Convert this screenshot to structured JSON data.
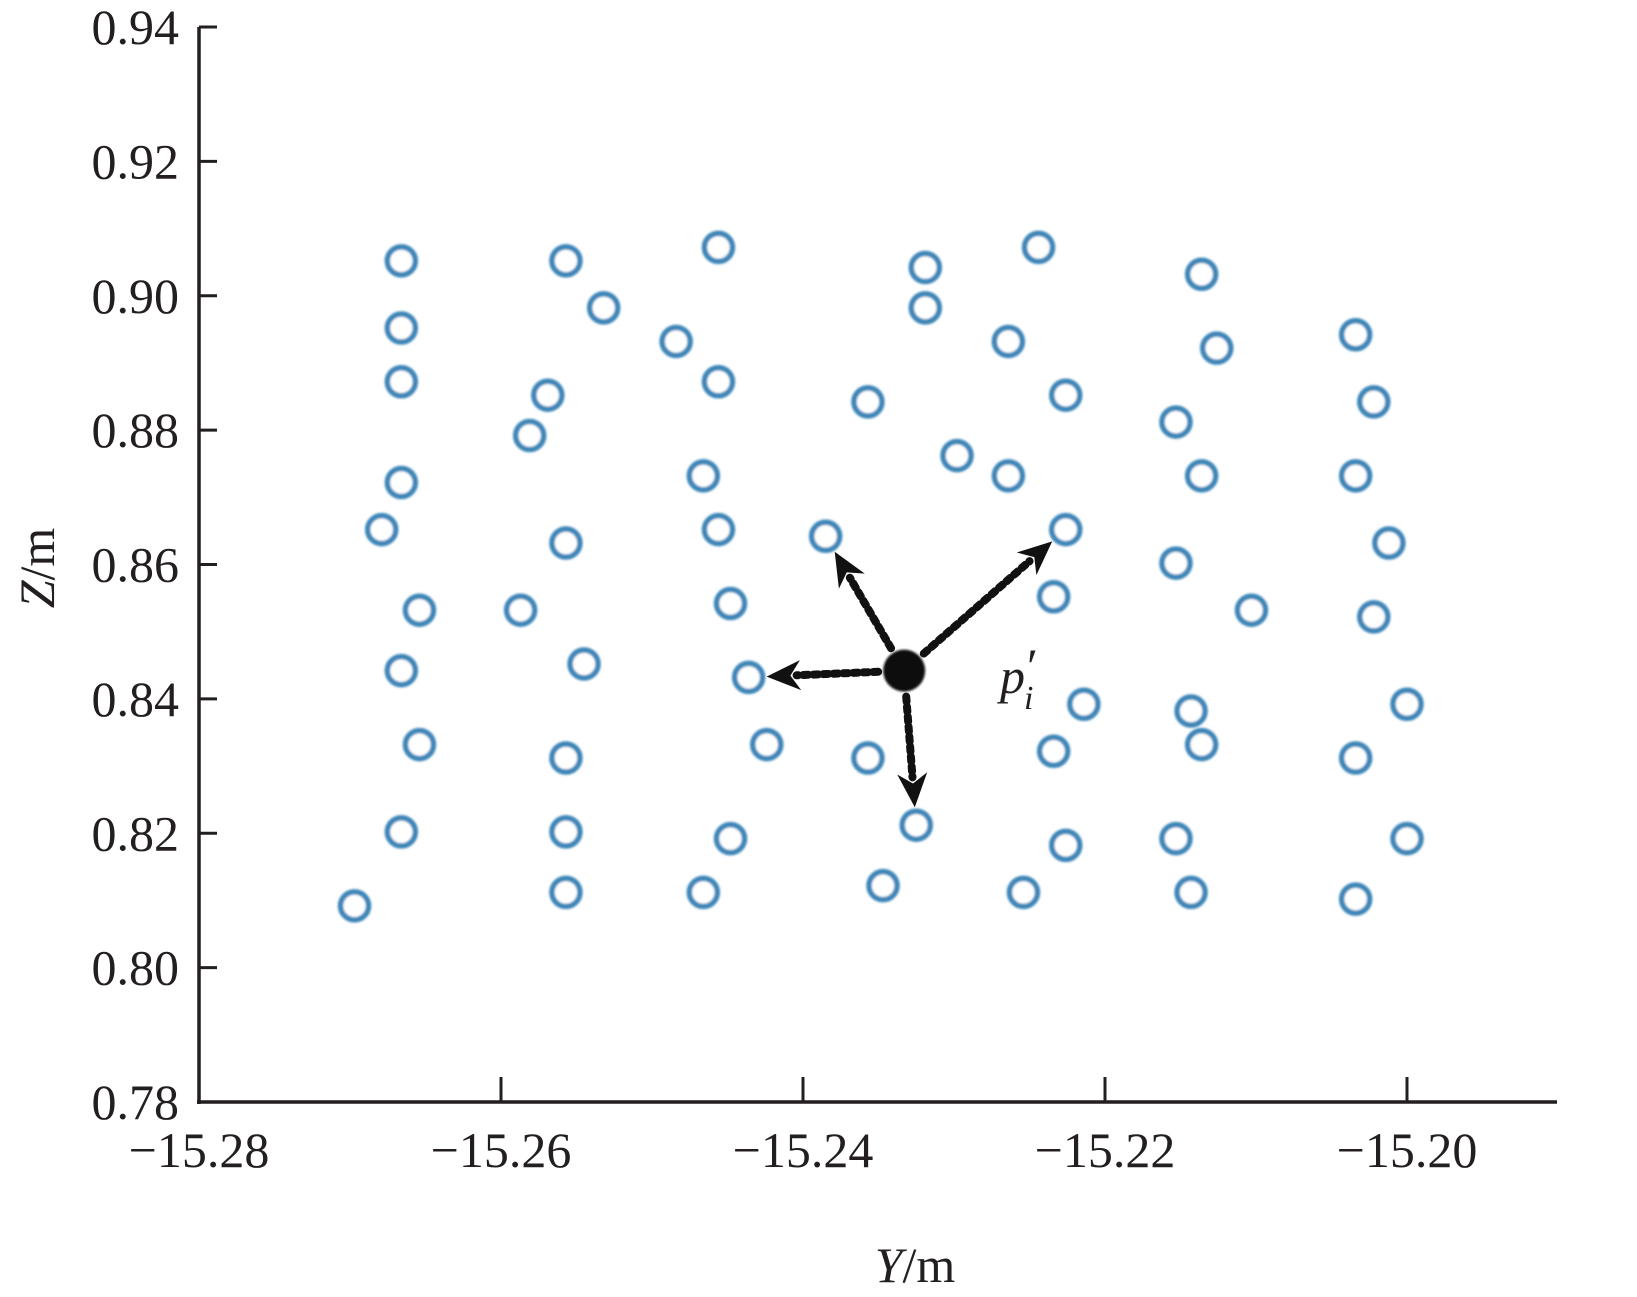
{
  "chart_data": {
    "type": "scatter",
    "title": "",
    "xlabel": "Y/m",
    "xlabel_var": "Y",
    "xlabel_unit": "/m",
    "ylabel": "Z/m",
    "ylabel_var": "Z",
    "ylabel_unit": "/m",
    "xlim": [
      -15.28,
      -15.19
    ],
    "ylim": [
      0.78,
      0.94
    ],
    "xticks": [
      -15.28,
      -15.26,
      -15.24,
      -15.22,
      -15.2
    ],
    "xtick_labels": [
      "−15.28",
      "−15.26",
      "−15.24",
      "−15.22",
      "−15.20"
    ],
    "yticks": [
      0.78,
      0.8,
      0.82,
      0.84,
      0.86,
      0.88,
      0.9,
      0.92,
      0.94
    ],
    "ytick_labels": [
      "0.78",
      "0.80",
      "0.82",
      "0.84",
      "0.86",
      "0.88",
      "0.90",
      "0.92",
      "0.94"
    ],
    "grid": false,
    "marker_color": "#3e86b8",
    "center_color": "#111111",
    "series": [
      {
        "marker": "hollow-circle",
        "points": [
          [
            -15.2666,
            0.9052
          ],
          [
            -15.2666,
            0.8952
          ],
          [
            -15.2666,
            0.8872
          ],
          [
            -15.2666,
            0.8722
          ],
          [
            -15.2679,
            0.8652
          ],
          [
            -15.2654,
            0.8532
          ],
          [
            -15.2666,
            0.8442
          ],
          [
            -15.2654,
            0.8332
          ],
          [
            -15.2666,
            0.8202
          ],
          [
            -15.2697,
            0.8092
          ],
          [
            -15.2557,
            0.9052
          ],
          [
            -15.2532,
            0.8982
          ],
          [
            -15.2569,
            0.8852
          ],
          [
            -15.2581,
            0.8792
          ],
          [
            -15.2557,
            0.8632
          ],
          [
            -15.2587,
            0.8532
          ],
          [
            -15.2545,
            0.8452
          ],
          [
            -15.2557,
            0.8312
          ],
          [
            -15.2557,
            0.8202
          ],
          [
            -15.2557,
            0.8112
          ],
          [
            -15.2456,
            0.9072
          ],
          [
            -15.2484,
            0.8932
          ],
          [
            -15.2456,
            0.8872
          ],
          [
            -15.2466,
            0.8732
          ],
          [
            -15.2456,
            0.8652
          ],
          [
            -15.2448,
            0.8542
          ],
          [
            -15.2436,
            0.8432
          ],
          [
            -15.2424,
            0.8332
          ],
          [
            -15.2448,
            0.8192
          ],
          [
            -15.2466,
            0.8112
          ],
          [
            -15.2385,
            0.8642
          ],
          [
            -15.2357,
            0.8842
          ],
          [
            -15.2357,
            0.8312
          ],
          [
            -15.2347,
            0.8122
          ],
          [
            -15.2325,
            0.8212
          ],
          [
            -15.2319,
            0.9042
          ],
          [
            -15.2319,
            0.8982
          ],
          [
            -15.2298,
            0.8762
          ],
          [
            -15.2244,
            0.9072
          ],
          [
            -15.2264,
            0.8932
          ],
          [
            -15.2264,
            0.8732
          ],
          [
            -15.2226,
            0.8852
          ],
          [
            -15.2226,
            0.8652
          ],
          [
            -15.2234,
            0.8552
          ],
          [
            -15.2214,
            0.8392
          ],
          [
            -15.2234,
            0.8322
          ],
          [
            -15.2226,
            0.8182
          ],
          [
            -15.2254,
            0.8112
          ],
          [
            -15.2136,
            0.9032
          ],
          [
            -15.2126,
            0.8922
          ],
          [
            -15.2153,
            0.8812
          ],
          [
            -15.2136,
            0.8732
          ],
          [
            -15.2153,
            0.8602
          ],
          [
            -15.2103,
            0.8532
          ],
          [
            -15.2143,
            0.8382
          ],
          [
            -15.2136,
            0.8332
          ],
          [
            -15.2153,
            0.8192
          ],
          [
            -15.2143,
            0.8112
          ],
          [
            -15.2034,
            0.8942
          ],
          [
            -15.2022,
            0.8842
          ],
          [
            -15.2034,
            0.8732
          ],
          [
            -15.2012,
            0.8632
          ],
          [
            -15.2022,
            0.8522
          ],
          [
            -15.2,
            0.8392
          ],
          [
            -15.2034,
            0.8312
          ],
          [
            -15.2,
            0.8192
          ],
          [
            -15.2034,
            0.8102
          ]
        ]
      }
    ],
    "center_point": [
      -15.2333,
      0.8442
    ],
    "neighbor_arrows": [
      [
        -15.2385,
        0.8642
      ],
      [
        -15.2226,
        0.8652
      ],
      [
        -15.2436,
        0.8432
      ],
      [
        -15.2325,
        0.8212
      ]
    ],
    "annotation": {
      "base": "p",
      "prime": "′",
      "subscript": "i"
    }
  }
}
